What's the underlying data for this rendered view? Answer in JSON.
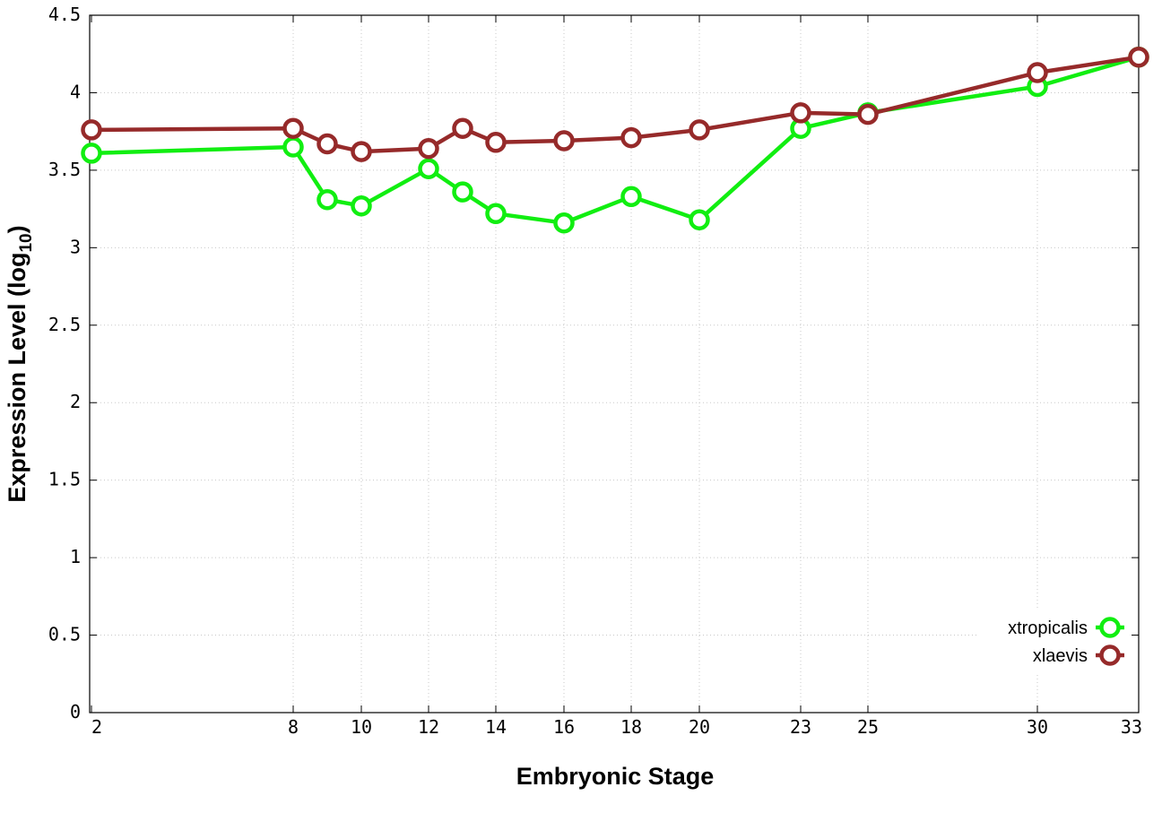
{
  "chart_data": {
    "type": "line",
    "xlabel": "Embryonic Stage",
    "ylabel": "Expression Level (log",
    "ylabel_subscript": "10",
    "ylabel_close": ")",
    "x_ticks": [
      "2",
      "8",
      "10",
      "12",
      "14",
      "16",
      "18",
      "20",
      "23",
      "25",
      "30",
      "33"
    ],
    "xlim": [
      2,
      33
    ],
    "ylim": [
      0,
      4.5
    ],
    "y_ticks": [
      "0",
      "0.5",
      "1",
      "1.5",
      "2",
      "2.5",
      "3",
      "3.5",
      "4",
      "4.5"
    ],
    "grid": true,
    "legend_position": "bottom-right",
    "series": [
      {
        "name": "xtropicalis",
        "color": "#11ee11",
        "x": [
          2,
          8,
          9,
          10,
          12,
          13,
          14,
          16,
          18,
          20,
          23,
          25,
          30,
          33
        ],
        "values": [
          3.61,
          3.65,
          3.31,
          3.27,
          3.51,
          3.36,
          3.22,
          3.16,
          3.33,
          3.18,
          3.77,
          3.87,
          4.04,
          4.23
        ]
      },
      {
        "name": "xlaevis",
        "color": "#962a2a",
        "x": [
          2,
          8,
          9,
          10,
          12,
          13,
          14,
          16,
          18,
          20,
          23,
          25,
          30,
          33
        ],
        "values": [
          3.76,
          3.77,
          3.67,
          3.62,
          3.64,
          3.77,
          3.68,
          3.69,
          3.71,
          3.76,
          3.87,
          3.86,
          4.13,
          4.23
        ]
      }
    ]
  }
}
